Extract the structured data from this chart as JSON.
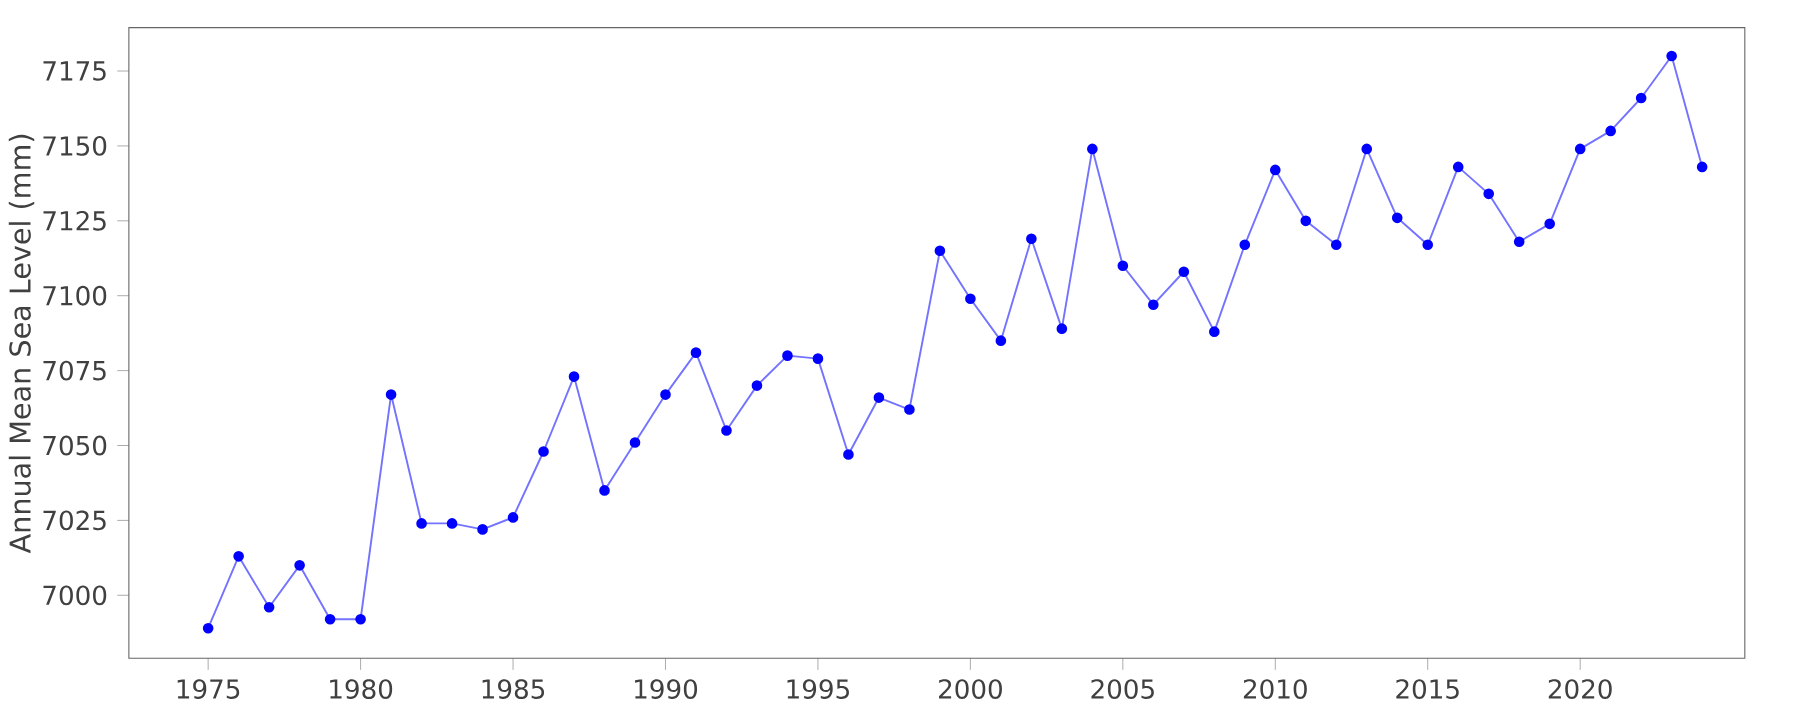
{
  "chart_data": {
    "type": "line",
    "ylabel": "Annual Mean Sea Level (mm)",
    "x": [
      1975,
      1976,
      1977,
      1978,
      1979,
      1980,
      1981,
      1982,
      1983,
      1984,
      1985,
      1986,
      1987,
      1988,
      1989,
      1990,
      1991,
      1992,
      1993,
      1994,
      1995,
      1996,
      1997,
      1998,
      1999,
      2000,
      2001,
      2002,
      2003,
      2004,
      2005,
      2006,
      2007,
      2008,
      2009,
      2010,
      2011,
      2012,
      2013,
      2014,
      2015,
      2016,
      2017,
      2018,
      2019,
      2020,
      2021,
      2022,
      2023,
      2024
    ],
    "series": [
      {
        "color": "#0000ff",
        "values": [
          6989,
          7013,
          6996,
          7010,
          6992,
          6992,
          7067,
          7024,
          7024,
          7022,
          7026,
          7048,
          7073,
          7035,
          7051,
          7067,
          7081,
          7055,
          7070,
          7080,
          7079,
          7047,
          7066,
          7062,
          7115,
          7099,
          7085,
          7119,
          7089,
          7149,
          7110,
          7097,
          7108,
          7088,
          7117,
          7142,
          7125,
          7117,
          7149,
          7126,
          7117,
          7143,
          7134,
          7118,
          7124,
          7149,
          7155,
          7166,
          7180,
          7143
        ]
      }
    ],
    "xlim": [
      1972.4,
      2025.4
    ],
    "ylim": [
      6979,
      7189.5
    ],
    "xticks": [
      1975,
      1980,
      1985,
      1990,
      1995,
      2000,
      2005,
      2010,
      2015,
      2020
    ],
    "yticks": [
      7000,
      7025,
      7050,
      7075,
      7100,
      7125,
      7150,
      7175
    ],
    "marker": "circle",
    "line_style": "solid"
  }
}
